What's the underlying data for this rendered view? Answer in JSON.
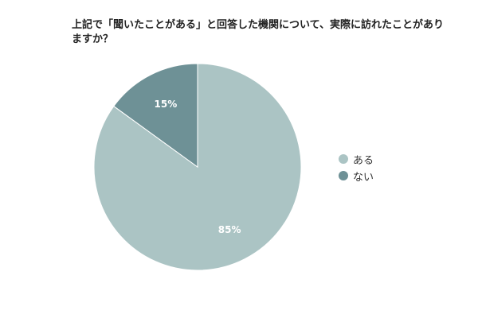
{
  "chart_data": {
    "type": "pie",
    "title": "上記で「聞いたことがある」と回答した機関について、実際に訪れたことがありますか？",
    "categories": [
      "ある",
      "ない"
    ],
    "values": [
      85,
      15
    ],
    "labels": [
      "85%",
      "15%"
    ],
    "colors": [
      "#abc4c4",
      "#6e9196"
    ],
    "legend_position": "right"
  }
}
